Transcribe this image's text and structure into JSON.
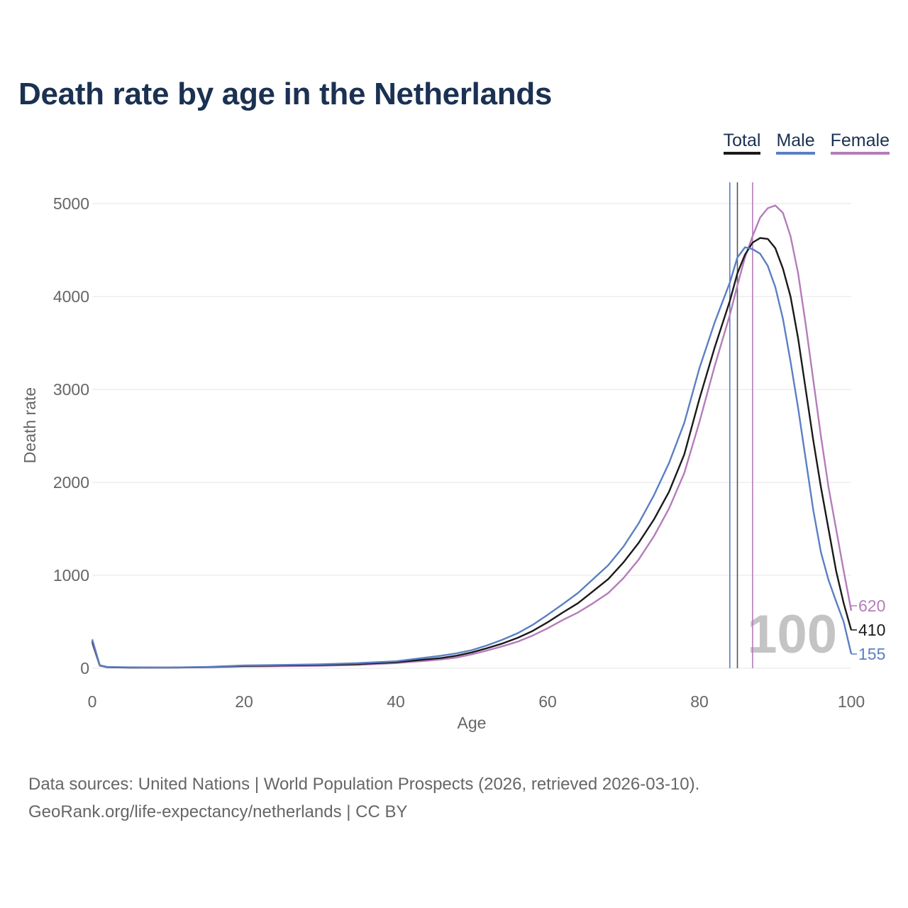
{
  "title": "Death rate by age in the Netherlands",
  "legend": [
    {
      "label": "Total",
      "color": "#1a1a1a"
    },
    {
      "label": "Male",
      "color": "#5a7fc4"
    },
    {
      "label": "Female",
      "color": "#b57cba"
    }
  ],
  "source": {
    "line1": "Data sources: United Nations | World Population Prospects (2026, retrieved 2026-03-10).",
    "line2": "GeoRank.org/life-expectancy/netherlands | CC BY"
  },
  "chart_data": {
    "type": "line",
    "xlabel": "Age",
    "ylabel": "Death rate",
    "xlim": [
      0,
      100
    ],
    "ylim": [
      0,
      5000
    ],
    "xticks": [
      0,
      20,
      40,
      60,
      80,
      100
    ],
    "xtick_labels": [
      "0",
      "20",
      "40",
      "60",
      "80",
      "100"
    ],
    "yticks": [
      0,
      1000,
      2000,
      3000,
      4000,
      5000
    ],
    "ytick_labels": [
      "0",
      "1000",
      "2000",
      "3000",
      "4000",
      "5000"
    ],
    "grid": true,
    "current_age_label": "100",
    "vertical_lines": [
      {
        "series": "Male",
        "x": 84,
        "color": "#5a7fc4"
      },
      {
        "series": "Total",
        "x": 85,
        "color": "#555555"
      },
      {
        "series": "Female",
        "x": 87,
        "color": "#b57cba"
      }
    ],
    "series": [
      {
        "name": "Total",
        "color": "#1a1a1a",
        "end_label": "410",
        "points": [
          [
            0,
            290
          ],
          [
            1,
            30
          ],
          [
            2,
            12
          ],
          [
            5,
            8
          ],
          [
            10,
            7
          ],
          [
            15,
            12
          ],
          [
            20,
            25
          ],
          [
            25,
            30
          ],
          [
            30,
            35
          ],
          [
            35,
            45
          ],
          [
            40,
            65
          ],
          [
            42,
            80
          ],
          [
            44,
            95
          ],
          [
            46,
            110
          ],
          [
            48,
            135
          ],
          [
            50,
            170
          ],
          [
            52,
            215
          ],
          [
            54,
            265
          ],
          [
            56,
            325
          ],
          [
            58,
            400
          ],
          [
            60,
            495
          ],
          [
            62,
            600
          ],
          [
            64,
            700
          ],
          [
            66,
            830
          ],
          [
            68,
            960
          ],
          [
            70,
            1140
          ],
          [
            72,
            1350
          ],
          [
            74,
            1600
          ],
          [
            76,
            1900
          ],
          [
            78,
            2300
          ],
          [
            80,
            2900
          ],
          [
            82,
            3450
          ],
          [
            84,
            3950
          ],
          [
            85,
            4250
          ],
          [
            86,
            4450
          ],
          [
            87,
            4580
          ],
          [
            88,
            4630
          ],
          [
            89,
            4620
          ],
          [
            90,
            4520
          ],
          [
            91,
            4300
          ],
          [
            92,
            4000
          ],
          [
            93,
            3550
          ],
          [
            94,
            3000
          ],
          [
            95,
            2450
          ],
          [
            96,
            1950
          ],
          [
            97,
            1500
          ],
          [
            98,
            1050
          ],
          [
            99,
            700
          ],
          [
            100,
            410
          ]
        ]
      },
      {
        "name": "Male",
        "color": "#5a7fc4",
        "end_label": "155",
        "points": [
          [
            0,
            310
          ],
          [
            1,
            32
          ],
          [
            2,
            14
          ],
          [
            5,
            10
          ],
          [
            10,
            8
          ],
          [
            15,
            14
          ],
          [
            20,
            30
          ],
          [
            25,
            36
          ],
          [
            30,
            42
          ],
          [
            35,
            55
          ],
          [
            40,
            75
          ],
          [
            42,
            95
          ],
          [
            44,
            115
          ],
          [
            46,
            135
          ],
          [
            48,
            160
          ],
          [
            50,
            195
          ],
          [
            52,
            245
          ],
          [
            54,
            305
          ],
          [
            56,
            375
          ],
          [
            58,
            465
          ],
          [
            60,
            575
          ],
          [
            62,
            690
          ],
          [
            64,
            810
          ],
          [
            66,
            960
          ],
          [
            68,
            1110
          ],
          [
            70,
            1310
          ],
          [
            72,
            1560
          ],
          [
            74,
            1860
          ],
          [
            76,
            2210
          ],
          [
            78,
            2640
          ],
          [
            80,
            3230
          ],
          [
            82,
            3720
          ],
          [
            84,
            4150
          ],
          [
            85,
            4420
          ],
          [
            86,
            4530
          ],
          [
            87,
            4510
          ],
          [
            88,
            4460
          ],
          [
            89,
            4330
          ],
          [
            90,
            4100
          ],
          [
            91,
            3760
          ],
          [
            92,
            3300
          ],
          [
            93,
            2800
          ],
          [
            94,
            2250
          ],
          [
            95,
            1700
          ],
          [
            96,
            1250
          ],
          [
            97,
            950
          ],
          [
            98,
            720
          ],
          [
            99,
            500
          ],
          [
            100,
            155
          ]
        ]
      },
      {
        "name": "Female",
        "color": "#b57cba",
        "end_label": "620",
        "points": [
          [
            0,
            270
          ],
          [
            1,
            28
          ],
          [
            2,
            10
          ],
          [
            5,
            7
          ],
          [
            10,
            6
          ],
          [
            15,
            10
          ],
          [
            20,
            18
          ],
          [
            25,
            22
          ],
          [
            30,
            27
          ],
          [
            35,
            35
          ],
          [
            40,
            55
          ],
          [
            42,
            68
          ],
          [
            44,
            80
          ],
          [
            46,
            95
          ],
          [
            48,
            115
          ],
          [
            50,
            150
          ],
          [
            52,
            190
          ],
          [
            54,
            235
          ],
          [
            56,
            285
          ],
          [
            58,
            350
          ],
          [
            60,
            430
          ],
          [
            62,
            520
          ],
          [
            64,
            600
          ],
          [
            66,
            700
          ],
          [
            68,
            810
          ],
          [
            70,
            970
          ],
          [
            72,
            1170
          ],
          [
            74,
            1420
          ],
          [
            76,
            1720
          ],
          [
            78,
            2100
          ],
          [
            80,
            2650
          ],
          [
            82,
            3250
          ],
          [
            84,
            3800
          ],
          [
            85,
            4120
          ],
          [
            86,
            4420
          ],
          [
            87,
            4650
          ],
          [
            88,
            4850
          ],
          [
            89,
            4950
          ],
          [
            90,
            4980
          ],
          [
            91,
            4900
          ],
          [
            92,
            4650
          ],
          [
            93,
            4250
          ],
          [
            94,
            3700
          ],
          [
            95,
            3100
          ],
          [
            96,
            2500
          ],
          [
            97,
            1950
          ],
          [
            98,
            1500
          ],
          [
            99,
            1050
          ],
          [
            100,
            620
          ]
        ]
      }
    ]
  }
}
